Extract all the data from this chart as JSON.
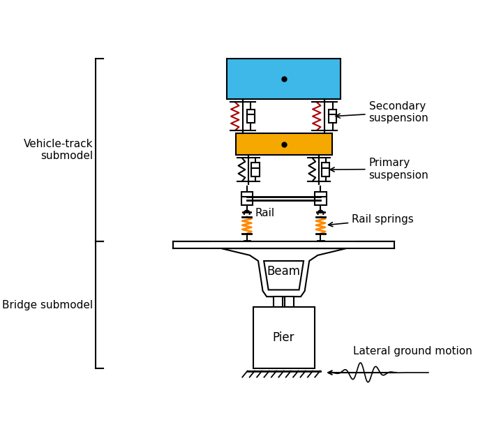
{
  "car_body_color": "#3db8e8",
  "bogie_color": "#f5a800",
  "spring_color_secondary": "#aa0000",
  "spring_color_rail": "#ff8800",
  "outline_color": "#000000",
  "bg_color": "#ffffff",
  "label_secondary": "Secondary\nsuspension",
  "label_primary": "Primary\nsuspension",
  "label_rail": "Rail",
  "label_rail_springs": "Rail springs",
  "label_beam": "Beam",
  "label_pier": "Pier",
  "label_ground": "Lateral ground motion",
  "label_vehicle": "Vehicle-track\nsubmodel",
  "label_bridge": "Bridge submodel",
  "fig_width": 6.85,
  "fig_height": 6.35
}
